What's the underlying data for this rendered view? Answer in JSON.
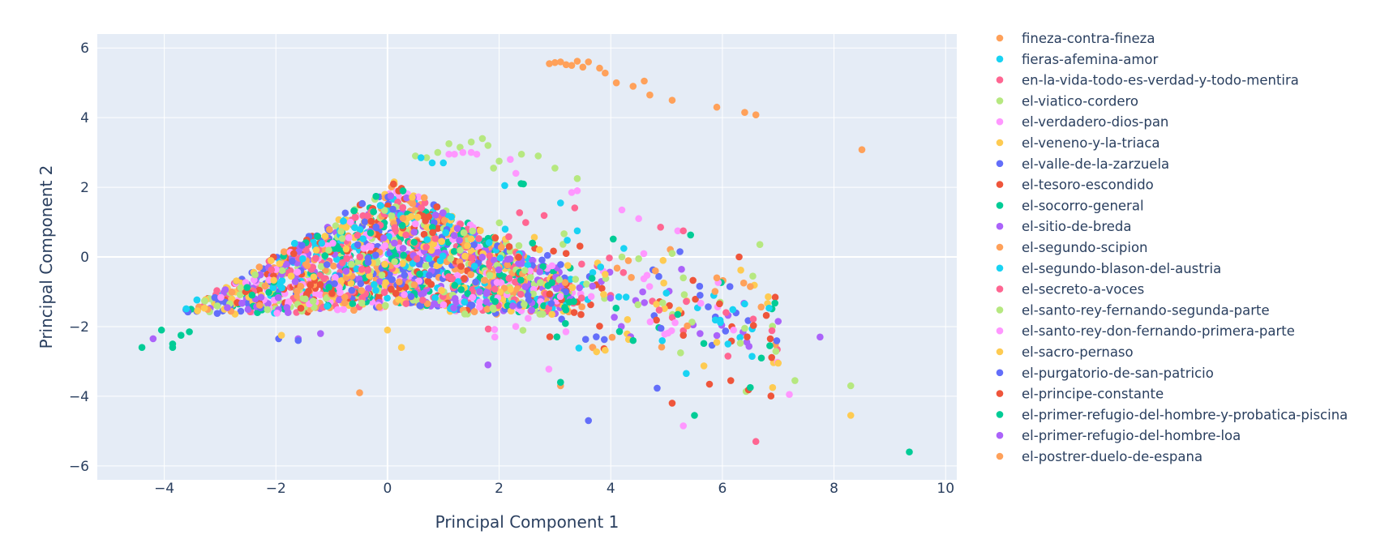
{
  "chart_data": {
    "type": "scatter",
    "title": "",
    "xlabel": "Principal Component 1",
    "ylabel": "Principal Component 2",
    "xlim": [
      -5.2,
      10.2
    ],
    "ylim": [
      -6.4,
      6.4
    ],
    "xticks": [
      -4,
      -2,
      0,
      2,
      4,
      6,
      8,
      10
    ],
    "yticks": [
      -6,
      -4,
      -2,
      0,
      2,
      4,
      6
    ],
    "grid": true,
    "legend_position": "right (scrollable, clipped at bottom)",
    "colors": {
      "plot_bg": "#E5ECF6",
      "grid": "#FFFFFF",
      "text": "#2a3f5f"
    },
    "legend": [
      {
        "name": "fineza-contra-fineza",
        "color": "#FFA15A"
      },
      {
        "name": "fieras-afemina-amor",
        "color": "#19D3F3"
      },
      {
        "name": "en-la-vida-todo-es-verdad-y-todo-mentira",
        "color": "#FF6692"
      },
      {
        "name": "el-viatico-cordero",
        "color": "#B6E880"
      },
      {
        "name": "el-verdadero-dios-pan",
        "color": "#FF97FF"
      },
      {
        "name": "el-veneno-y-la-triaca",
        "color": "#FECB52"
      },
      {
        "name": "el-valle-de-la-zarzuela",
        "color": "#636EFA"
      },
      {
        "name": "el-tesoro-escondido",
        "color": "#EF553B"
      },
      {
        "name": "el-socorro-general",
        "color": "#00CC96"
      },
      {
        "name": "el-sitio-de-breda",
        "color": "#AB63FA"
      },
      {
        "name": "el-segundo-scipion",
        "color": "#FFA15A"
      },
      {
        "name": "el-segundo-blason-del-austria",
        "color": "#19D3F3"
      },
      {
        "name": "el-secreto-a-voces",
        "color": "#FF6692"
      },
      {
        "name": "el-santo-rey-fernando-segunda-parte",
        "color": "#B6E880"
      },
      {
        "name": "el-santo-rey-don-fernando-primera-parte",
        "color": "#FF97FF"
      },
      {
        "name": "el-sacro-pernaso",
        "color": "#FECB52"
      },
      {
        "name": "el-purgatorio-de-san-patricio",
        "color": "#636EFA"
      },
      {
        "name": "el-principe-constante",
        "color": "#EF553B"
      },
      {
        "name": "el-primer-refugio-del-hombre-y-probatica-piscina",
        "color": "#00CC96"
      },
      {
        "name": "el-primer-refugio-del-hombre-loa",
        "color": "#AB63FA"
      },
      {
        "name": "el-postrer-duelo-de-espana",
        "color": "#FFA15A"
      }
    ],
    "series_points": [
      {
        "name": "fineza-contra-fineza",
        "x": [
          2.9,
          3.0,
          3.1,
          3.2,
          3.3,
          3.4,
          3.5,
          3.6,
          3.8,
          3.9,
          4.1,
          4.4,
          4.6,
          4.7,
          5.1,
          5.9,
          6.4,
          6.6,
          8.5
        ],
        "y": [
          5.55,
          5.58,
          5.6,
          5.52,
          5.5,
          5.62,
          5.45,
          5.6,
          5.42,
          5.28,
          5.0,
          4.9,
          5.05,
          4.65,
          4.5,
          4.3,
          4.15,
          4.08,
          3.08
        ]
      },
      {
        "name": "el-segundo-scipion",
        "x": [
          -0.5,
          3.1,
          6.5,
          5.9,
          4.8
        ],
        "y": [
          -3.9,
          -3.7,
          -0.85,
          -0.6,
          -0.4
        ]
      },
      {
        "name": "el-viatico-cordero",
        "x": [
          0.5,
          0.7,
          0.9,
          1.1,
          1.3,
          1.5,
          1.7,
          1.8,
          1.9,
          2.0,
          2.4,
          2.7,
          3.0,
          3.4,
          4.2,
          4.5,
          5.1,
          5.3,
          6.4,
          8.3,
          7.3
        ],
        "y": [
          2.9,
          2.85,
          3.0,
          3.25,
          3.15,
          3.3,
          3.4,
          3.2,
          2.55,
          2.75,
          2.95,
          2.9,
          2.55,
          2.25,
          0.0,
          -0.05,
          0.1,
          -0.6,
          -2.05,
          -3.7,
          -3.55
        ]
      },
      {
        "name": "el-verdadero-dios-pan",
        "x": [
          1.1,
          1.2,
          1.35,
          1.5,
          1.6,
          2.2,
          2.3,
          3.3,
          3.4,
          4.2,
          4.5,
          5.2,
          6.2,
          7.2,
          5.3
        ],
        "y": [
          2.95,
          2.95,
          3.0,
          3.0,
          2.95,
          2.8,
          2.4,
          1.85,
          1.9,
          1.35,
          1.1,
          0.75,
          -2.1,
          -3.95,
          -4.85
        ]
      },
      {
        "name": "fieras-afemina-amor",
        "x": [
          0.6,
          0.8,
          1.0,
          3.1,
          3.4,
          2.1,
          6.1,
          6.4
        ],
        "y": [
          2.85,
          2.7,
          2.7,
          1.55,
          0.75,
          2.05,
          -2.5,
          -1.35
        ]
      },
      {
        "name": "el-socorro-general",
        "x": [
          -4.4,
          -4.05,
          -3.85,
          -3.7,
          -3.85,
          -3.55,
          5.5,
          6.5,
          6.85,
          9.35,
          4.4,
          5.2,
          3.1
        ],
        "y": [
          -2.6,
          -2.1,
          -2.5,
          -2.25,
          -2.6,
          -2.15,
          -4.55,
          -3.75,
          -2.55,
          -5.6,
          -2.4,
          -1.65,
          -3.6
        ]
      },
      {
        "name": "el-sitio-de-breda",
        "x": [
          -4.2,
          -1.6,
          -1.2,
          1.8,
          5.6,
          7.75,
          7.0
        ],
        "y": [
          -2.35,
          -2.35,
          -2.2,
          -3.1,
          -2.2,
          -2.3,
          -1.85
        ]
      },
      {
        "name": "el-purgatorio-de-san-patricio",
        "x": [
          -1.6,
          -1.95,
          3.6,
          5.6,
          4.9
        ],
        "y": [
          -2.4,
          -2.35,
          -4.7,
          -1.1,
          -2.05
        ]
      },
      {
        "name": "el-principe-constante",
        "x": [
          5.1,
          6.3,
          3.2,
          5.3,
          6.15
        ],
        "y": [
          -4.2,
          0.0,
          0.1,
          -2.25,
          -3.55
        ]
      },
      {
        "name": "el-secreto-a-voces",
        "x": [
          6.6,
          6.1,
          5.3
        ],
        "y": [
          -5.3,
          -2.85,
          0.75
        ]
      },
      {
        "name": "el-sacro-pernaso",
        "x": [
          8.3,
          -1.9,
          0.25,
          0.0,
          7.0
        ],
        "y": [
          -4.55,
          -2.25,
          -2.6,
          -2.1,
          -3.05
        ]
      },
      {
        "name": "el-veneno-y-la-triaca",
        "x": [
          6.9,
          5.9,
          4.95,
          3.9
        ],
        "y": [
          -3.75,
          -2.45,
          -0.75,
          -0.5
        ]
      }
    ]
  },
  "cloud": {
    "palette": [
      "#636EFA",
      "#EF553B",
      "#00CC96",
      "#AB63FA",
      "#FFA15A",
      "#19D3F3",
      "#FF6692",
      "#B6E880",
      "#FF97FF",
      "#FECB52"
    ],
    "count": 3200,
    "tail_count": 260
  }
}
